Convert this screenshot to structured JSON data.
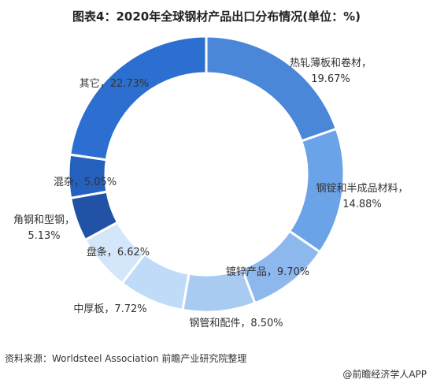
{
  "title": "图表4：2020年全球钢材产品出口分布情况(单位：%)",
  "source": "资料来源：Worldsteel Association 前瞻产业研究院整理",
  "credit": "@前瞻经济学人APP",
  "chart_data": {
    "type": "pie",
    "variant": "donut",
    "title": "图表4：2020年全球钢材产品出口分布情况(单位：%)",
    "unit": "%",
    "start": "12 o'clock, clockwise",
    "slices": [
      {
        "label": "热轧薄板和卷材",
        "value": 19.67,
        "value_label": "19.67%",
        "color": "#4A87D8"
      },
      {
        "label": "钢锭和半成品材料",
        "value": 14.88,
        "value_label": "14.88%",
        "color": "#6BA3E8"
      },
      {
        "label": "镀锌产品",
        "value": 9.7,
        "value_label": "9.70%",
        "color": "#8DB8EE"
      },
      {
        "label": "钢管和配件",
        "value": 8.5,
        "value_label": "8.50%",
        "color": "#A9CBF2"
      },
      {
        "label": "中厚板",
        "value": 7.72,
        "value_label": "7.72%",
        "color": "#C0DBF7"
      },
      {
        "label": "盘条",
        "value": 6.62,
        "value_label": "6.62%",
        "color": "#D3E6FA"
      },
      {
        "label": "角钢和型钢",
        "value": 5.13,
        "value_label": "5.13%",
        "color": "#2152A6"
      },
      {
        "label": "混杂",
        "value": 5.05,
        "value_label": "5.05%",
        "color": "#2660BE"
      },
      {
        "label": "其它",
        "value": 22.73,
        "value_label": "22.73%",
        "color": "#2C6FD0"
      }
    ]
  }
}
